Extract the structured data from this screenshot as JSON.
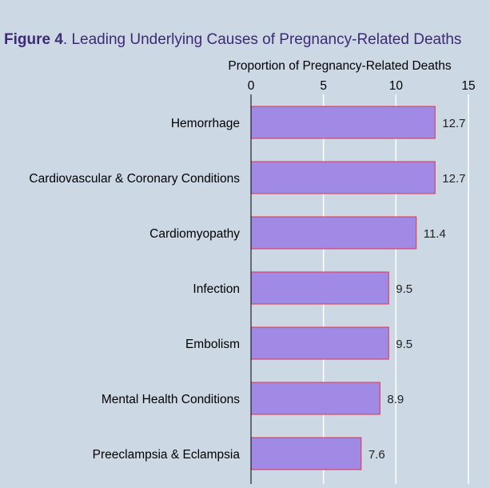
{
  "figure": {
    "label": "Figure 4",
    "title": ". Leading Underlying Causes of Pregnancy-Related Deaths"
  },
  "colors": {
    "background": "#ccd9e5",
    "bar_fill": "#a18ae6",
    "bar_stroke": "#e0334b",
    "gridline": "#ffffff",
    "axis_line": "#000000",
    "title": "#3e2a74"
  },
  "chart_data": {
    "type": "bar",
    "orientation": "horizontal",
    "title": "Figure 4. Leading Underlying Causes of Pregnancy-Related Deaths",
    "xlabel": "Proportion of Pregnancy-Related Deaths",
    "x_axis_position": "top",
    "xlim": [
      0,
      15
    ],
    "xticks": [
      0,
      5,
      10,
      15
    ],
    "grid": true,
    "categories": [
      "Hemorrhage",
      "Cardiovascular & Coronary Conditions",
      "Cardiomyopathy",
      "Infection",
      "Embolism",
      "Mental Health Conditions",
      "Preeclampsia & Eclampsia"
    ],
    "values": [
      12.7,
      12.7,
      11.4,
      9.5,
      9.5,
      8.9,
      7.6
    ],
    "data_labels": [
      "12.7",
      "12.7",
      "11.4",
      "9.5",
      "9.5",
      "8.9",
      "7.6"
    ]
  }
}
